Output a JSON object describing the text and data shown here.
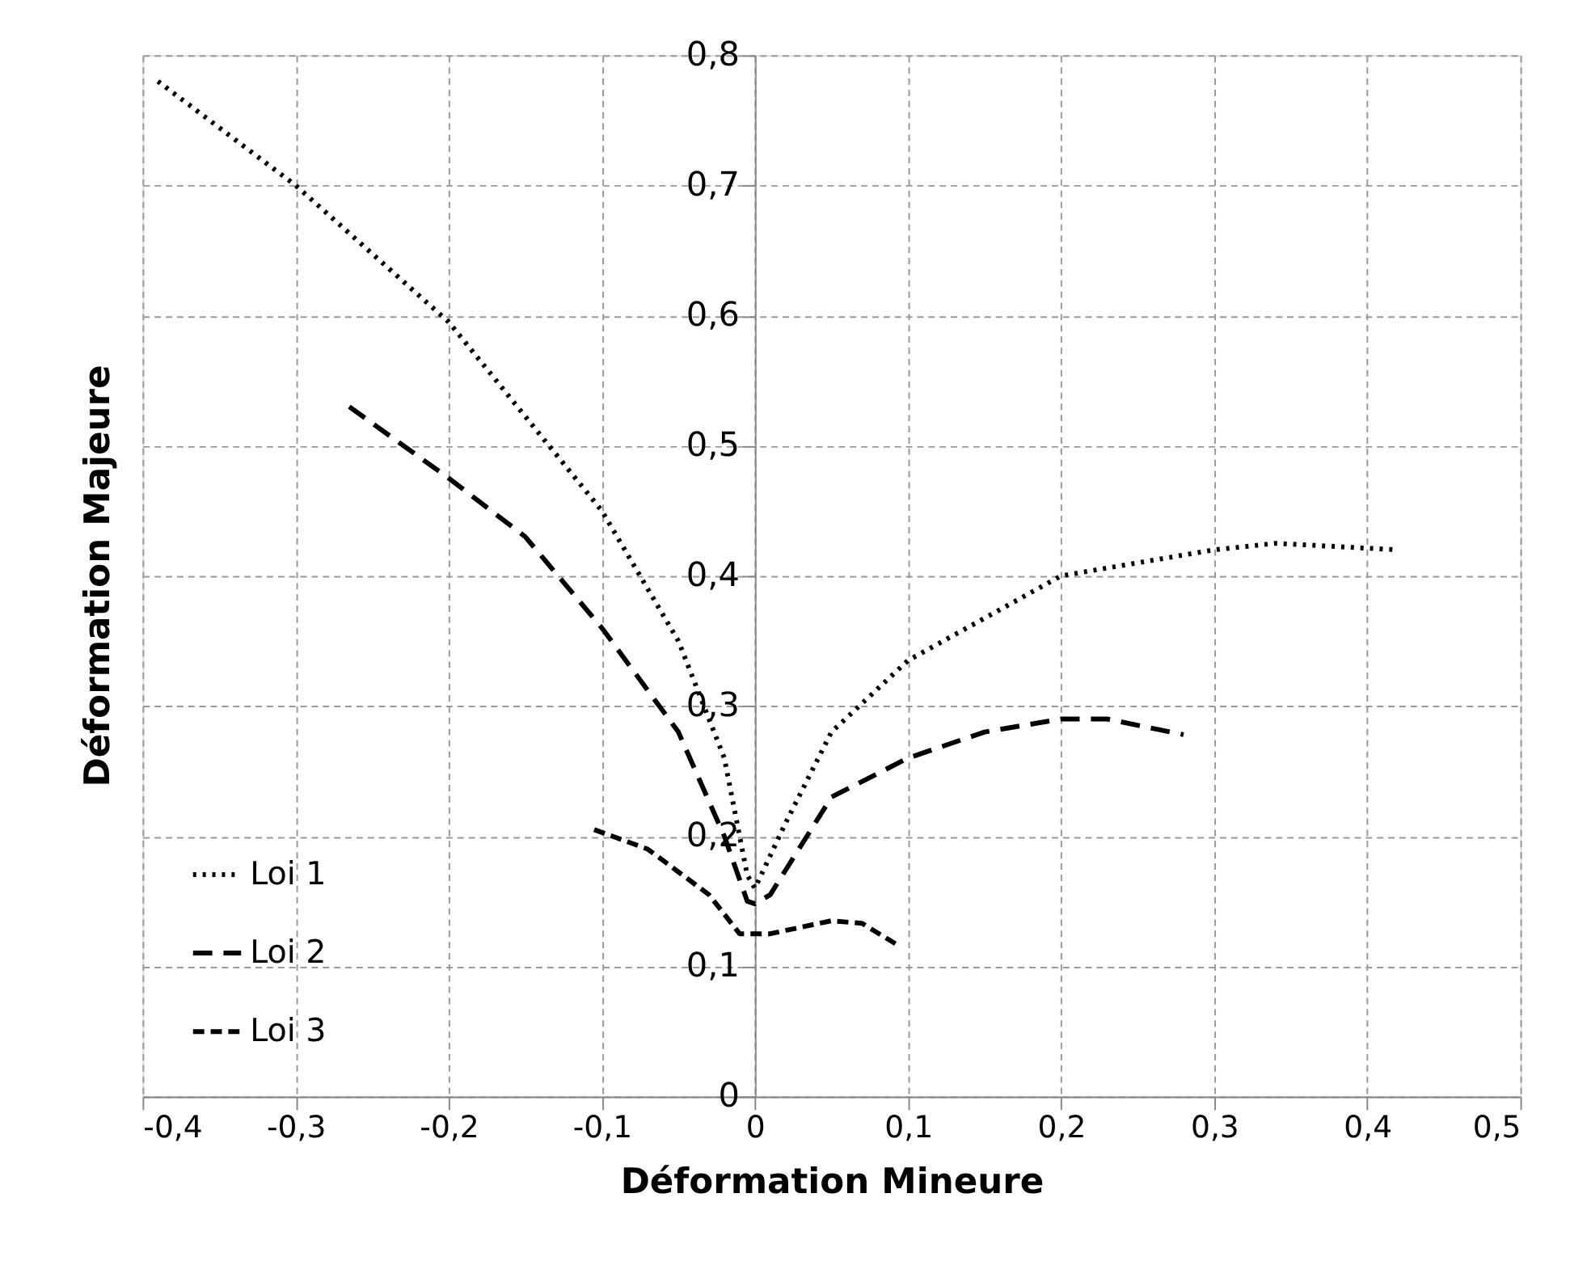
{
  "chart_data": {
    "type": "line",
    "xlabel": "Déformation Mineure",
    "ylabel": "Déformation Majeure",
    "xlim": [
      -0.4,
      0.5
    ],
    "ylim": [
      0,
      0.8
    ],
    "xticks": [
      {
        "value": -0.4,
        "label": "-0,4"
      },
      {
        "value": -0.3,
        "label": "-0,3"
      },
      {
        "value": -0.2,
        "label": "-0,2"
      },
      {
        "value": -0.1,
        "label": "-0,1"
      },
      0,
      {
        "value": 0.1,
        "label": "0,1"
      },
      {
        "value": 0.2,
        "label": "0,2"
      },
      {
        "value": 0.3,
        "label": "0,3"
      },
      {
        "value": 0.4,
        "label": "0,4"
      },
      {
        "value": 0.5,
        "label": "0,5"
      }
    ],
    "yticks": [
      0,
      {
        "value": 0.1,
        "label": "0,1"
      },
      {
        "value": 0.2,
        "label": "0,2"
      },
      {
        "value": 0.3,
        "label": "0,3"
      },
      {
        "value": 0.4,
        "label": "0,4"
      },
      {
        "value": 0.5,
        "label": "0,5"
      },
      {
        "value": 0.6,
        "label": "0,6"
      },
      {
        "value": 0.7,
        "label": "0,7"
      },
      {
        "value": 0.8,
        "label": "0,8"
      }
    ],
    "grid": true,
    "legend": "bottom left",
    "series": [
      {
        "name": "Loi 1",
        "color": "#000000",
        "line_style": "dotted",
        "x": [
          -0.39,
          -0.3,
          -0.2,
          -0.1,
          -0.05,
          -0.02,
          -0.005,
          0,
          0.02,
          0.05,
          0.1,
          0.2,
          0.3,
          0.34,
          0.42
        ],
        "values": [
          0.78,
          0.7,
          0.595,
          0.45,
          0.35,
          0.26,
          0.17,
          0.16,
          0.21,
          0.28,
          0.335,
          0.4,
          0.42,
          0.425,
          0.42
        ]
      },
      {
        "name": "Loi 2",
        "color": "#000000",
        "line_style": "dashed",
        "x": [
          -0.265,
          -0.2,
          -0.15,
          -0.1,
          -0.05,
          -0.02,
          -0.005,
          0,
          0.01,
          0.05,
          0.1,
          0.15,
          0.2,
          0.23,
          0.28
        ],
        "values": [
          0.53,
          0.475,
          0.43,
          0.36,
          0.28,
          0.2,
          0.15,
          0.148,
          0.155,
          0.23,
          0.26,
          0.28,
          0.29,
          0.29,
          0.278
        ]
      },
      {
        "name": "Loi 3",
        "color": "#000000",
        "line_style": "dashed",
        "x": [
          -0.105,
          -0.07,
          -0.03,
          -0.01,
          0.01,
          0.05,
          0.07,
          0.095
        ],
        "values": [
          0.205,
          0.19,
          0.155,
          0.125,
          0.125,
          0.135,
          0.133,
          0.115
        ]
      }
    ]
  }
}
